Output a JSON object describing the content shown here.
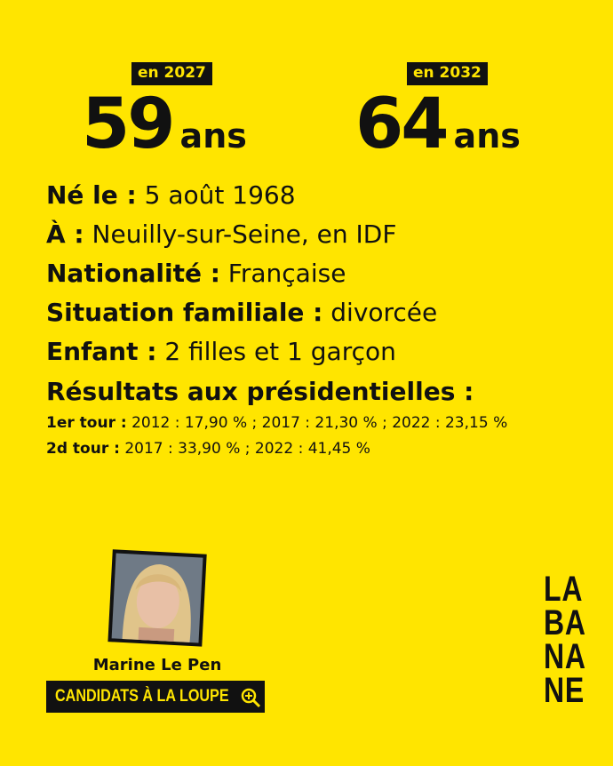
{
  "ages": [
    {
      "label": "en 2027",
      "number": "59",
      "unit": "ans"
    },
    {
      "label": "en 2032",
      "number": "64",
      "unit": "ans"
    }
  ],
  "facts": [
    {
      "label": "Né le :",
      "value": "5 août 1968"
    },
    {
      "label": "À :",
      "value": "Neuilly-sur-Seine, en IDF"
    },
    {
      "label": "Nationalité :",
      "value": "Française"
    },
    {
      "label": "Situation familiale :",
      "value": "divorcée"
    },
    {
      "label": "Enfant :",
      "value": "2 filles et 1 garçon"
    }
  ],
  "results": {
    "title": "Résultats aux présidentielles :",
    "rows": [
      {
        "label": "1er tour :",
        "value": "2012 : 17,90 % ; 2017 : 21,30 % ; 2022 : 23,15 %"
      },
      {
        "label": "2d tour :",
        "value": "2017 : 33,90 % ; 2022 : 41,45 %"
      }
    ]
  },
  "footer": {
    "name": "Marine Le Pen",
    "series": "CANDIDATS À LA LOUPE",
    "logo": [
      "LA",
      "BA",
      "NA",
      "NE"
    ]
  }
}
